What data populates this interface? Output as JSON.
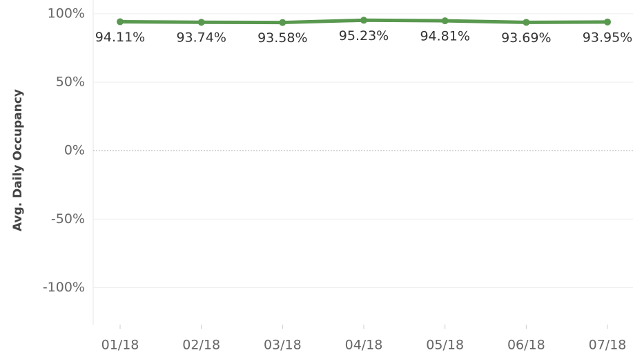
{
  "chart_data": {
    "type": "line",
    "y_label": "Avg. Daily Occupancy",
    "categories": [
      "01/18",
      "02/18",
      "03/18",
      "04/18",
      "05/18",
      "06/18",
      "07/18"
    ],
    "series": [
      {
        "name": "Avg. Daily Occupancy",
        "color": "#59984f",
        "values": [
          94.11,
          93.74,
          93.58,
          95.23,
          94.81,
          93.69,
          93.95
        ],
        "value_labels": [
          "94.11%",
          "93.74%",
          "93.58%",
          "95.23%",
          "94.81%",
          "93.69%",
          "93.95%"
        ]
      }
    ],
    "ylim": [
      -127,
      110
    ],
    "yticks": [
      {
        "value": -100,
        "label": "-100%"
      },
      {
        "value": -50,
        "label": "-50%"
      },
      {
        "value": 0,
        "label": "0%"
      },
      {
        "value": 50,
        "label": "50%"
      },
      {
        "value": 100,
        "label": "100%"
      }
    ],
    "grid": true
  }
}
